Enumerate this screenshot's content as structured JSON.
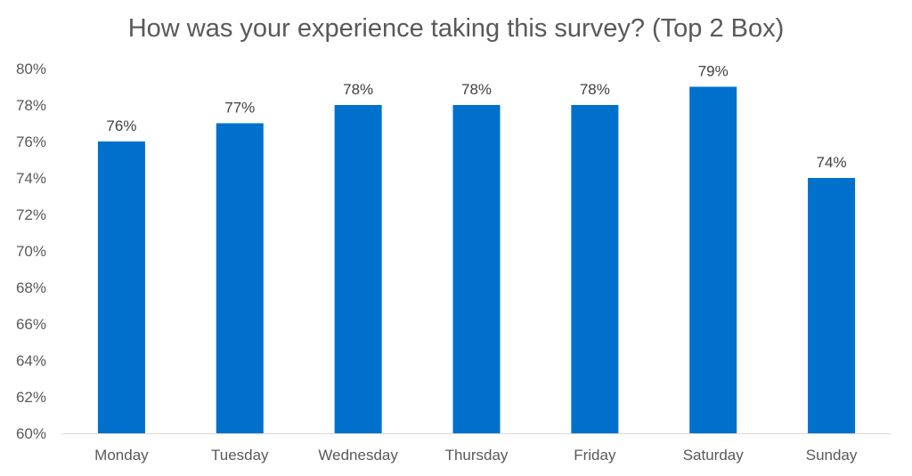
{
  "chart_data": {
    "type": "bar",
    "title": "How was your experience taking this survey? (Top 2 Box)",
    "xlabel": "",
    "ylabel": "",
    "categories": [
      "Monday",
      "Tuesday",
      "Wednesday",
      "Thursday",
      "Friday",
      "Saturday",
      "Sunday"
    ],
    "values": [
      76,
      77,
      78,
      78,
      78,
      79,
      74
    ],
    "data_labels": [
      "76%",
      "77%",
      "78%",
      "78%",
      "78%",
      "79%",
      "74%"
    ],
    "ylim": [
      60,
      80
    ],
    "y_ticks": [
      60,
      62,
      64,
      66,
      68,
      70,
      72,
      74,
      76,
      78,
      80
    ],
    "y_tick_labels": [
      "60%",
      "62%",
      "64%",
      "66%",
      "68%",
      "70%",
      "72%",
      "74%",
      "76%",
      "78%",
      "80%"
    ],
    "grid": false,
    "legend": "none",
    "bar_color": "#0070CD"
  }
}
